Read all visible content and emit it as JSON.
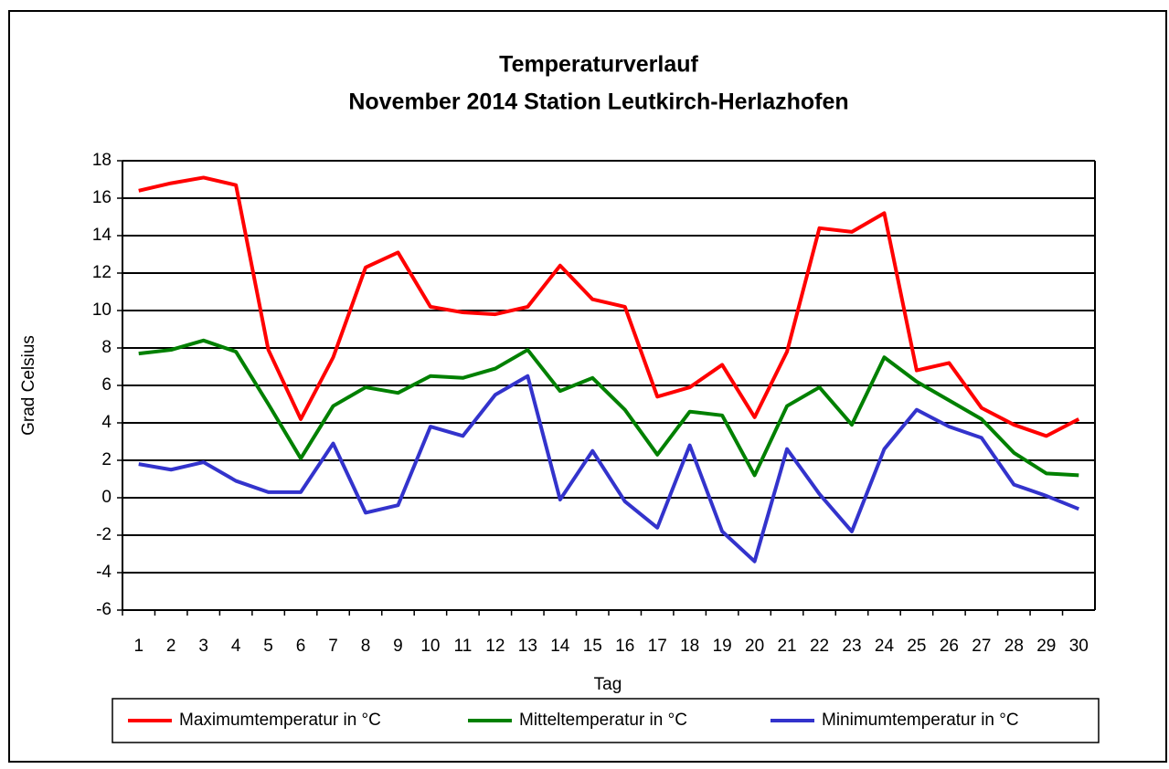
{
  "chart_data": {
    "type": "line",
    "title": "Temperaturverlauf",
    "subtitle": "November 2014 Station Leutkirch-Herlazhofen",
    "x_label": "Tag",
    "y_label": "Grad Celsius",
    "categories": [
      "1",
      "2",
      "3",
      "4",
      "5",
      "6",
      "7",
      "8",
      "9",
      "10",
      "11",
      "12",
      "13",
      "14",
      "15",
      "16",
      "17",
      "18",
      "19",
      "20",
      "21",
      "22",
      "23",
      "24",
      "25",
      "26",
      "27",
      "28",
      "29",
      "30"
    ],
    "series": [
      {
        "name": "Maximumtemperatur in °C",
        "color": "#ff0000",
        "values": [
          16.4,
          16.8,
          17.1,
          16.7,
          7.9,
          4.2,
          7.5,
          12.3,
          13.1,
          10.2,
          9.9,
          9.8,
          10.2,
          12.4,
          10.6,
          10.2,
          5.4,
          5.9,
          7.1,
          4.3,
          7.8,
          14.4,
          14.2,
          15.2,
          6.8,
          7.2,
          4.8,
          3.9,
          3.3,
          4.2
        ]
      },
      {
        "name": "Mitteltemperatur in °C",
        "color": "#008000",
        "values": [
          7.7,
          7.9,
          8.4,
          7.8,
          5.0,
          2.1,
          4.9,
          5.9,
          5.6,
          6.5,
          6.4,
          6.9,
          7.9,
          5.7,
          6.4,
          4.7,
          2.3,
          4.6,
          4.4,
          1.2,
          4.9,
          5.9,
          3.9,
          7.5,
          6.2,
          5.2,
          4.2,
          2.4,
          1.3,
          1.2
        ]
      },
      {
        "name": "Minimumtemperatur in °C",
        "color": "#3333cc",
        "values": [
          1.8,
          1.5,
          1.9,
          0.9,
          0.3,
          0.3,
          2.9,
          -0.8,
          -0.4,
          3.8,
          3.3,
          5.5,
          6.5,
          -0.1,
          2.5,
          -0.2,
          -1.6,
          2.8,
          -1.8,
          -3.4,
          2.6,
          0.2,
          -1.8,
          2.6,
          4.7,
          3.8,
          3.2,
          0.7,
          0.1,
          -0.6
        ]
      }
    ],
    "ylim": [
      -6,
      18
    ],
    "yticks": [
      -6,
      -4,
      -2,
      0,
      2,
      4,
      6,
      8,
      10,
      12,
      14,
      16,
      18
    ],
    "grid": true,
    "legend": "bottom"
  }
}
